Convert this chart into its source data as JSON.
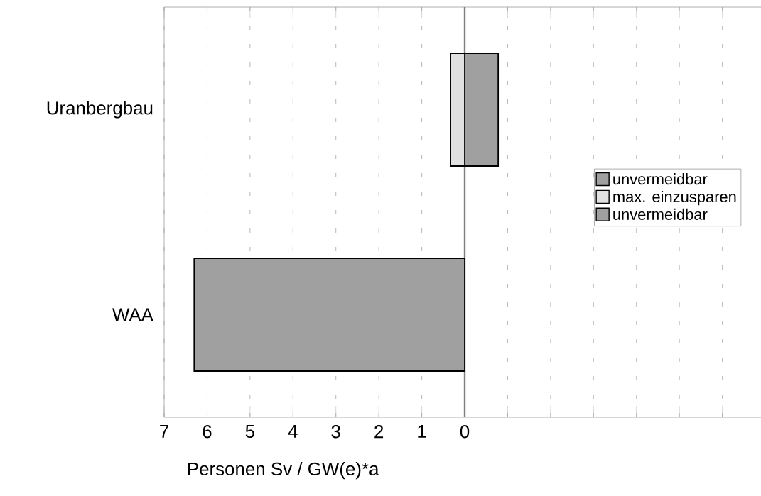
{
  "chart_data": {
    "type": "bar",
    "orientation": "horizontal",
    "stacked": true,
    "xlabel": "Personen Sv / GW(e)*a",
    "categories": [
      "Uranbergbau",
      "WAA"
    ],
    "series": [
      {
        "name": "unvermeidbar",
        "color": "#a0a0a0",
        "values": [
          0.78,
          null
        ]
      },
      {
        "name": "max. einzusparen",
        "color": "#e0e0e0",
        "values": [
          -0.33,
          null
        ]
      },
      {
        "name": "unvermeidbar",
        "color": "#a0a0a0",
        "values": [
          null,
          -6.3
        ]
      }
    ],
    "xlim": [
      -7,
      6.9
    ],
    "xticks": [
      {
        "value": -7,
        "label": "7"
      },
      {
        "value": -6,
        "label": "6"
      },
      {
        "value": -5,
        "label": "5"
      },
      {
        "value": -4,
        "label": "4"
      },
      {
        "value": -3,
        "label": "3"
      },
      {
        "value": -2,
        "label": "2"
      },
      {
        "value": -1,
        "label": "1"
      },
      {
        "value": 0,
        "label": "0"
      },
      {
        "value": 1,
        "label": null
      },
      {
        "value": 2,
        "label": null
      },
      {
        "value": 3,
        "label": null
      },
      {
        "value": 4,
        "label": null
      },
      {
        "value": 5,
        "label": null
      },
      {
        "value": 6,
        "label": null
      }
    ],
    "ref_lines": [
      {
        "axis": "x",
        "value": 0,
        "color": "#808080"
      }
    ],
    "grid": "x",
    "legend": "right"
  }
}
